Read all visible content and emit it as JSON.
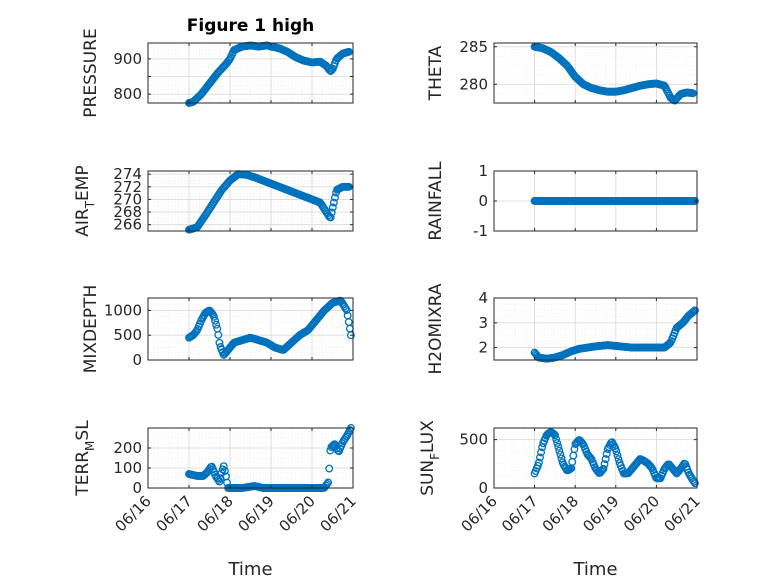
{
  "figure": {
    "title": "Figure 1 high"
  },
  "colors": {
    "marker": "#0072BD",
    "axis": "#262626",
    "grid": "#d9d9d9"
  },
  "chart_data": [
    {
      "type": "scatter",
      "title": "Figure 1 high",
      "ylabel": "PRESSURE",
      "xlim": [
        0,
        5
      ],
      "ylim": [
        775,
        945
      ],
      "yticks": [
        800,
        850,
        900
      ],
      "yticklabels": [
        "800",
        "",
        "900"
      ],
      "grid": true,
      "minor_grid": true,
      "knots": [
        [
          1.0,
          775
        ],
        [
          1.1,
          778
        ],
        [
          1.3,
          800
        ],
        [
          1.5,
          830
        ],
        [
          1.7,
          860
        ],
        [
          1.9,
          885
        ],
        [
          2.0,
          900
        ],
        [
          2.1,
          925
        ],
        [
          2.3,
          935
        ],
        [
          2.5,
          938
        ],
        [
          2.7,
          935
        ],
        [
          2.9,
          938
        ],
        [
          3.0,
          935
        ],
        [
          3.2,
          930
        ],
        [
          3.4,
          920
        ],
        [
          3.6,
          905
        ],
        [
          3.8,
          895
        ],
        [
          4.0,
          890
        ],
        [
          4.2,
          892
        ],
        [
          4.35,
          880
        ],
        [
          4.45,
          865
        ],
        [
          4.5,
          870
        ],
        [
          4.6,
          900
        ],
        [
          4.75,
          915
        ],
        [
          4.9,
          920
        ]
      ]
    },
    {
      "type": "scatter",
      "ylabel": "THETA",
      "xlim": [
        0,
        5
      ],
      "ylim": [
        277.5,
        285.5
      ],
      "yticks": [
        280,
        285
      ],
      "yticklabels": [
        "280",
        "285"
      ],
      "grid": true,
      "minor_grid": true,
      "knots": [
        [
          1.0,
          285
        ],
        [
          1.2,
          284.8
        ],
        [
          1.4,
          284.3
        ],
        [
          1.6,
          283.5
        ],
        [
          1.8,
          282.5
        ],
        [
          2.0,
          281
        ],
        [
          2.2,
          280
        ],
        [
          2.4,
          279.5
        ],
        [
          2.6,
          279.2
        ],
        [
          2.8,
          279
        ],
        [
          3.0,
          279
        ],
        [
          3.2,
          279.2
        ],
        [
          3.4,
          279.5
        ],
        [
          3.6,
          279.8
        ],
        [
          3.8,
          280
        ],
        [
          4.0,
          280.1
        ],
        [
          4.2,
          279.8
        ],
        [
          4.35,
          278.2
        ],
        [
          4.45,
          277.8
        ],
        [
          4.6,
          278.7
        ],
        [
          4.75,
          278.9
        ],
        [
          4.9,
          278.8
        ]
      ]
    },
    {
      "type": "scatter",
      "ylabel": "AIR_TEMP",
      "ylabel_parts": [
        "AIR",
        "T",
        "EMP"
      ],
      "xlim": [
        0,
        5
      ],
      "ylim": [
        265,
        274.5
      ],
      "yticks": [
        266,
        268,
        270,
        272,
        274
      ],
      "yticklabels": [
        "266",
        "268",
        "270",
        "272",
        "274"
      ],
      "grid": true,
      "minor_grid": true,
      "knots": [
        [
          1.0,
          265.2
        ],
        [
          1.2,
          265.6
        ],
        [
          1.4,
          267.5
        ],
        [
          1.6,
          269.5
        ],
        [
          1.8,
          271.5
        ],
        [
          2.0,
          273
        ],
        [
          2.2,
          274
        ],
        [
          2.4,
          273.9
        ],
        [
          2.6,
          273.5
        ],
        [
          2.8,
          273
        ],
        [
          3.0,
          272.5
        ],
        [
          3.2,
          272
        ],
        [
          3.4,
          271.5
        ],
        [
          3.6,
          271
        ],
        [
          3.8,
          270.5
        ],
        [
          4.0,
          270
        ],
        [
          4.2,
          269.5
        ],
        [
          4.3,
          268.5
        ],
        [
          4.4,
          267.5
        ],
        [
          4.45,
          267
        ],
        [
          4.6,
          271.5
        ],
        [
          4.75,
          272
        ],
        [
          4.9,
          272
        ]
      ]
    },
    {
      "type": "scatter",
      "ylabel": "RAINFALL",
      "xlim": [
        0,
        5
      ],
      "ylim": [
        -1,
        1
      ],
      "yticks": [
        -1,
        0,
        1
      ],
      "yticklabels": [
        "-1",
        "0",
        "1"
      ],
      "grid": true,
      "minor_grid": false,
      "knots": [
        [
          1.0,
          0
        ],
        [
          4.95,
          0
        ]
      ]
    },
    {
      "type": "scatter",
      "ylabel": "MIXDEPTH",
      "xlim": [
        0,
        5
      ],
      "ylim": [
        0,
        1250
      ],
      "yticks": [
        0,
        500,
        1000
      ],
      "yticklabels": [
        "0",
        "500",
        "1000"
      ],
      "grid": true,
      "minor_grid": true,
      "knots": [
        [
          1.0,
          450
        ],
        [
          1.1,
          500
        ],
        [
          1.2,
          600
        ],
        [
          1.3,
          800
        ],
        [
          1.4,
          950
        ],
        [
          1.5,
          1000
        ],
        [
          1.6,
          900
        ],
        [
          1.7,
          600
        ],
        [
          1.75,
          300
        ],
        [
          1.85,
          100
        ],
        [
          1.95,
          200
        ],
        [
          2.1,
          350
        ],
        [
          2.3,
          400
        ],
        [
          2.5,
          450
        ],
        [
          2.7,
          400
        ],
        [
          2.9,
          350
        ],
        [
          3.1,
          250
        ],
        [
          3.3,
          200
        ],
        [
          3.5,
          350
        ],
        [
          3.7,
          500
        ],
        [
          3.9,
          600
        ],
        [
          4.1,
          800
        ],
        [
          4.3,
          1000
        ],
        [
          4.5,
          1150
        ],
        [
          4.7,
          1200
        ],
        [
          4.85,
          1000
        ],
        [
          4.95,
          500
        ]
      ]
    },
    {
      "type": "scatter",
      "ylabel": "H2OMIXRA",
      "xlim": [
        0,
        5
      ],
      "ylim": [
        1.5,
        4
      ],
      "yticks": [
        2,
        3,
        4
      ],
      "yticklabels": [
        "2",
        "3",
        "4"
      ],
      "grid": true,
      "minor_grid": true,
      "knots": [
        [
          1.0,
          1.8
        ],
        [
          1.1,
          1.6
        ],
        [
          1.3,
          1.55
        ],
        [
          1.5,
          1.6
        ],
        [
          1.7,
          1.7
        ],
        [
          1.9,
          1.85
        ],
        [
          2.1,
          1.95
        ],
        [
          2.3,
          2.0
        ],
        [
          2.5,
          2.05
        ],
        [
          2.8,
          2.1
        ],
        [
          3.1,
          2.05
        ],
        [
          3.4,
          2.0
        ],
        [
          3.7,
          2.0
        ],
        [
          4.0,
          2.0
        ],
        [
          4.2,
          2.0
        ],
        [
          4.35,
          2.2
        ],
        [
          4.5,
          2.8
        ],
        [
          4.65,
          3.0
        ],
        [
          4.8,
          3.3
        ],
        [
          4.95,
          3.5
        ]
      ]
    },
    {
      "type": "scatter",
      "ylabel": "TERR_MSL",
      "ylabel_parts": [
        "TERR",
        "M",
        "SL"
      ],
      "xlim": [
        0,
        5
      ],
      "ylim": [
        0,
        300
      ],
      "yticks": [
        0,
        100,
        200
      ],
      "yticklabels": [
        "0",
        "100",
        "200"
      ],
      "grid": true,
      "minor_grid": true,
      "knots": [
        [
          1.0,
          70
        ],
        [
          1.2,
          60
        ],
        [
          1.35,
          60
        ],
        [
          1.45,
          80
        ],
        [
          1.55,
          110
        ],
        [
          1.65,
          60
        ],
        [
          1.75,
          30
        ],
        [
          1.8,
          80
        ],
        [
          1.85,
          110
        ],
        [
          1.9,
          60
        ],
        [
          1.95,
          0
        ],
        [
          2.3,
          0
        ],
        [
          2.6,
          10
        ],
        [
          2.8,
          0
        ],
        [
          3.5,
          0
        ],
        [
          4.3,
          0
        ],
        [
          4.4,
          30
        ],
        [
          4.45,
          200
        ],
        [
          4.55,
          220
        ],
        [
          4.65,
          180
        ],
        [
          4.75,
          230
        ],
        [
          4.85,
          260
        ],
        [
          4.95,
          300
        ]
      ]
    },
    {
      "type": "scatter",
      "ylabel": "SUN_FLUX",
      "ylabel_parts": [
        "SUN",
        "F",
        "LUX"
      ],
      "xlim": [
        0,
        5
      ],
      "ylim": [
        0,
        620
      ],
      "yticks": [
        0,
        500
      ],
      "yticklabels": [
        "0",
        "500"
      ],
      "grid": true,
      "minor_grid": true,
      "knots": [
        [
          1.0,
          150
        ],
        [
          1.1,
          250
        ],
        [
          1.2,
          450
        ],
        [
          1.3,
          550
        ],
        [
          1.4,
          580
        ],
        [
          1.5,
          550
        ],
        [
          1.6,
          400
        ],
        [
          1.7,
          250
        ],
        [
          1.8,
          180
        ],
        [
          1.9,
          200
        ],
        [
          2.0,
          450
        ],
        [
          2.1,
          500
        ],
        [
          2.2,
          450
        ],
        [
          2.3,
          350
        ],
        [
          2.4,
          300
        ],
        [
          2.5,
          200
        ],
        [
          2.6,
          150
        ],
        [
          2.7,
          200
        ],
        [
          2.8,
          400
        ],
        [
          2.9,
          480
        ],
        [
          3.0,
          400
        ],
        [
          3.1,
          250
        ],
        [
          3.2,
          150
        ],
        [
          3.3,
          150
        ],
        [
          3.4,
          200
        ],
        [
          3.5,
          250
        ],
        [
          3.6,
          300
        ],
        [
          3.7,
          280
        ],
        [
          3.8,
          250
        ],
        [
          3.9,
          200
        ],
        [
          4.0,
          100
        ],
        [
          4.1,
          100
        ],
        [
          4.2,
          200
        ],
        [
          4.3,
          250
        ],
        [
          4.4,
          200
        ],
        [
          4.5,
          150
        ],
        [
          4.6,
          200
        ],
        [
          4.7,
          260
        ],
        [
          4.8,
          150
        ],
        [
          4.9,
          80
        ],
        [
          4.95,
          50
        ]
      ]
    }
  ],
  "xaxis": {
    "ticks": [
      0,
      1,
      2,
      3,
      4,
      5
    ],
    "ticklabels": [
      "06/16",
      "06/17",
      "06/18",
      "06/19",
      "06/20",
      "06/21"
    ],
    "label": "Time"
  }
}
